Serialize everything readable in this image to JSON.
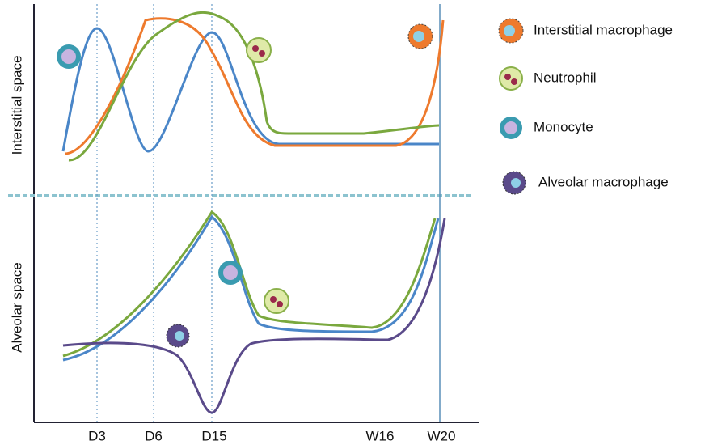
{
  "axes": {
    "y_top": "Interstitial space",
    "y_bottom": "Alveolar space",
    "x_ticks": [
      "D3",
      "D6",
      "D15",
      "W16",
      "W20"
    ]
  },
  "legend": [
    "Interstitial macrophage",
    "Neutrophil",
    "Monocyte",
    "Alveolar macrophage"
  ]
}
